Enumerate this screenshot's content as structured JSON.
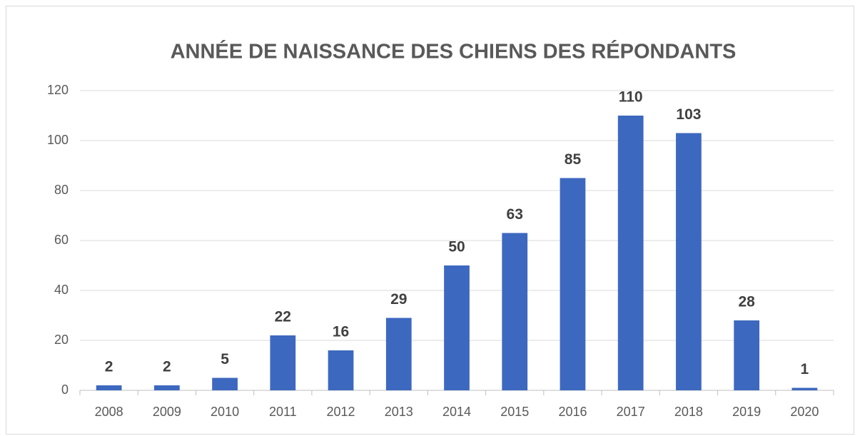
{
  "chart_data": {
    "type": "bar",
    "title": "ANNÉE DE NAISSANCE DES CHIENS DES RÉPONDANTS",
    "categories": [
      "2008",
      "2009",
      "2010",
      "2011",
      "2012",
      "2013",
      "2014",
      "2015",
      "2016",
      "2017",
      "2018",
      "2019",
      "2020"
    ],
    "values": [
      2,
      2,
      5,
      22,
      16,
      29,
      50,
      63,
      85,
      110,
      103,
      28,
      1
    ],
    "color": "#3d68bf",
    "ylim": [
      0,
      120
    ],
    "yticks": [
      0,
      20,
      40,
      60,
      80,
      100,
      120
    ],
    "grid": true
  }
}
